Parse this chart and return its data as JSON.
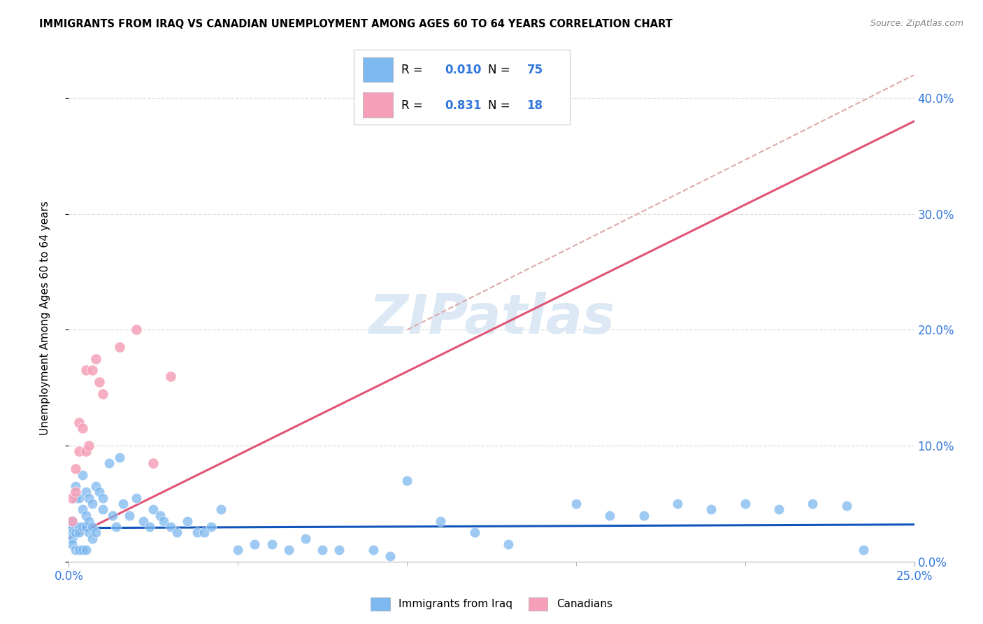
{
  "title": "IMMIGRANTS FROM IRAQ VS CANADIAN UNEMPLOYMENT AMONG AGES 60 TO 64 YEARS CORRELATION CHART",
  "source": "Source: ZipAtlas.com",
  "xlim": [
    0.0,
    0.25
  ],
  "ylim": [
    0.0,
    0.42
  ],
  "ylabel": "Unemployment Among Ages 60 to 64 years",
  "blue_R": "0.010",
  "blue_N": "75",
  "pink_R": "0.831",
  "pink_N": "18",
  "blue_color": "#7db8f0",
  "pink_color": "#f5a0b8",
  "blue_line_color": "#1055bb",
  "pink_line_color": "#e05575",
  "dashed_line_color": "#ddaaaa",
  "legend_text_color": "#3377dd",
  "watermark_color": "#dde8f5",
  "ytick_vals": [
    0.0,
    0.1,
    0.2,
    0.3,
    0.4
  ],
  "ytick_labels": [
    "0.0%",
    "10.0%",
    "20.0%",
    "30.0%",
    "40.0%"
  ],
  "xtick_vals": [
    0.0,
    0.25
  ],
  "xtick_labels": [
    "0.0%",
    "25.0%"
  ],
  "xtick_minor_vals": [
    0.05,
    0.1,
    0.15,
    0.2
  ],
  "blue_trend_x": [
    0.0,
    0.25
  ],
  "blue_trend_y": [
    0.029,
    0.032
  ],
  "pink_trend_x": [
    0.0,
    0.25
  ],
  "pink_trend_y": [
    0.02,
    0.38
  ],
  "dashed_trend_x": [
    0.1,
    0.25
  ],
  "dashed_trend_y": [
    0.2,
    0.42
  ],
  "blue_scatter_x": [
    0.001,
    0.001,
    0.001,
    0.001,
    0.001,
    0.002,
    0.002,
    0.002,
    0.002,
    0.002,
    0.003,
    0.003,
    0.003,
    0.003,
    0.004,
    0.004,
    0.004,
    0.004,
    0.005,
    0.005,
    0.005,
    0.005,
    0.006,
    0.006,
    0.006,
    0.007,
    0.007,
    0.007,
    0.008,
    0.008,
    0.009,
    0.01,
    0.01,
    0.012,
    0.013,
    0.014,
    0.015,
    0.016,
    0.018,
    0.02,
    0.022,
    0.024,
    0.025,
    0.027,
    0.028,
    0.03,
    0.032,
    0.035,
    0.038,
    0.04,
    0.042,
    0.045,
    0.05,
    0.055,
    0.06,
    0.065,
    0.07,
    0.075,
    0.08,
    0.09,
    0.095,
    0.1,
    0.11,
    0.12,
    0.13,
    0.15,
    0.16,
    0.17,
    0.18,
    0.19,
    0.2,
    0.21,
    0.22,
    0.23,
    0.235
  ],
  "blue_scatter_y": [
    0.03,
    0.025,
    0.02,
    0.035,
    0.015,
    0.065,
    0.055,
    0.03,
    0.025,
    0.01,
    0.055,
    0.03,
    0.025,
    0.01,
    0.075,
    0.045,
    0.03,
    0.01,
    0.06,
    0.04,
    0.03,
    0.01,
    0.055,
    0.035,
    0.025,
    0.05,
    0.03,
    0.02,
    0.065,
    0.025,
    0.06,
    0.055,
    0.045,
    0.085,
    0.04,
    0.03,
    0.09,
    0.05,
    0.04,
    0.055,
    0.035,
    0.03,
    0.045,
    0.04,
    0.035,
    0.03,
    0.025,
    0.035,
    0.025,
    0.025,
    0.03,
    0.045,
    0.01,
    0.015,
    0.015,
    0.01,
    0.02,
    0.01,
    0.01,
    0.01,
    0.005,
    0.07,
    0.035,
    0.025,
    0.015,
    0.05,
    0.04,
    0.04,
    0.05,
    0.045,
    0.05,
    0.045,
    0.05,
    0.048,
    0.01
  ],
  "pink_scatter_x": [
    0.001,
    0.001,
    0.002,
    0.002,
    0.003,
    0.003,
    0.004,
    0.005,
    0.005,
    0.006,
    0.007,
    0.008,
    0.009,
    0.01,
    0.015,
    0.02,
    0.025,
    0.03
  ],
  "pink_scatter_y": [
    0.055,
    0.035,
    0.08,
    0.06,
    0.12,
    0.095,
    0.115,
    0.165,
    0.095,
    0.1,
    0.165,
    0.175,
    0.155,
    0.145,
    0.185,
    0.2,
    0.085,
    0.16
  ],
  "background_color": "#ffffff",
  "grid_color": "#dddddd"
}
